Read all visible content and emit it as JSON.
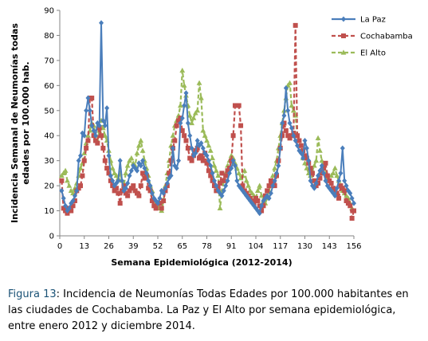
{
  "chart_data": {
    "type": "line",
    "ylabel": "Incidencia Semanal de Neumonías todas edades por 100.000 hab.",
    "xlabel": "Semana Epidemiológica (2012-2014)",
    "ylim": [
      0,
      90
    ],
    "yticks": [
      0,
      10,
      20,
      30,
      40,
      50,
      60,
      70,
      80,
      90
    ],
    "xlim": [
      0,
      156
    ],
    "xticks": [
      0,
      13,
      26,
      39,
      52,
      65,
      78,
      91,
      104,
      117,
      130,
      143,
      156
    ],
    "grid": false,
    "legend_position": "top-right",
    "series": [
      {
        "name": "La Paz",
        "color": "#4a7ebb",
        "style": "solid",
        "marker": "diamond",
        "values": [
          18,
          15,
          12,
          10,
          11,
          13,
          14,
          16,
          18,
          30,
          32,
          41,
          40,
          50,
          55,
          50,
          44,
          42,
          40,
          45,
          44,
          85,
          46,
          44,
          51,
          32,
          24,
          22,
          20,
          21,
          22,
          30,
          22,
          18,
          19,
          21,
          24,
          26,
          28,
          27,
          26,
          29,
          28,
          30,
          27,
          25,
          22,
          20,
          17,
          15,
          14,
          13,
          15,
          18,
          17,
          19,
          21,
          23,
          24,
          35,
          28,
          27,
          30,
          45,
          47,
          52,
          57,
          45,
          40,
          35,
          32,
          33,
          38,
          36,
          37,
          35,
          33,
          32,
          30,
          28,
          25,
          22,
          20,
          18,
          17,
          16,
          18,
          20,
          22,
          25,
          27,
          30,
          28,
          22,
          20,
          19,
          18,
          17,
          16,
          15,
          14,
          13,
          12,
          11,
          10,
          9,
          12,
          14,
          15,
          16,
          15,
          17,
          20,
          22,
          25,
          28,
          35,
          45,
          48,
          59,
          50,
          45,
          43,
          40,
          38,
          36,
          34,
          33,
          31,
          38,
          35,
          30,
          22,
          20,
          19,
          21,
          24,
          26,
          28,
          25,
          22,
          20,
          19,
          18,
          17,
          16,
          19,
          22,
          25,
          35,
          22,
          20,
          18,
          17,
          15,
          13
        ]
      },
      {
        "name": "Cochabamba",
        "color": "#c0504d",
        "style": "dashed",
        "marker": "square",
        "values": [
          22,
          11,
          10,
          9,
          11,
          10,
          12,
          14,
          18,
          19,
          20,
          24,
          30,
          35,
          38,
          55,
          55,
          40,
          38,
          37,
          43,
          40,
          35,
          30,
          27,
          25,
          22,
          20,
          18,
          19,
          17,
          13,
          18,
          20,
          17,
          16,
          18,
          19,
          20,
          18,
          17,
          16,
          20,
          25,
          23,
          24,
          19,
          18,
          14,
          12,
          11,
          13,
          13,
          11,
          14,
          18,
          20,
          25,
          30,
          35,
          38,
          44,
          46,
          47,
          42,
          40,
          38,
          35,
          31,
          30,
          32,
          34,
          35,
          31,
          32,
          30,
          33,
          29,
          26,
          24,
          22,
          20,
          18,
          19,
          21,
          25,
          22,
          24,
          26,
          27,
          30,
          40,
          52,
          52,
          52,
          44,
          20,
          18,
          17,
          16,
          15,
          14,
          13,
          15,
          14,
          12,
          10,
          12,
          16,
          18,
          20,
          22,
          21,
          20,
          24,
          30,
          35,
          40,
          45,
          42,
          40,
          39,
          40,
          41,
          84,
          40,
          38,
          36,
          34,
          32,
          31,
          29,
          27,
          25,
          22,
          20,
          21,
          23,
          25,
          27,
          29,
          24,
          22,
          21,
          19,
          18,
          17,
          15,
          20,
          19,
          18,
          14,
          13,
          12,
          7,
          10
        ]
      },
      {
        "name": "El Alto",
        "color": "#9bbb59",
        "style": "dashed",
        "marker": "triangle",
        "values": [
          24,
          25,
          26,
          22,
          20,
          18,
          17,
          19,
          21,
          24,
          27,
          29,
          33,
          37,
          40,
          42,
          45,
          44,
          40,
          38,
          42,
          46,
          43,
          40,
          38,
          34,
          30,
          27,
          25,
          24,
          23,
          25,
          22,
          20,
          25,
          28,
          30,
          31,
          29,
          28,
          33,
          36,
          38,
          34,
          30,
          27,
          24,
          20,
          18,
          15,
          13,
          12,
          11,
          10,
          14,
          20,
          25,
          30,
          36,
          40,
          44,
          46,
          48,
          52,
          66,
          60,
          56,
          52,
          48,
          45,
          47,
          49,
          50,
          61,
          55,
          42,
          40,
          38,
          36,
          34,
          31,
          28,
          26,
          24,
          11,
          18,
          22,
          25,
          28,
          30,
          32,
          31,
          29,
          27,
          25,
          23,
          24,
          26,
          22,
          20,
          18,
          17,
          16,
          15,
          18,
          20,
          16,
          14,
          13,
          15,
          18,
          21,
          24,
          27,
          30,
          35,
          40,
          45,
          50,
          55,
          60,
          61,
          52,
          50,
          48,
          40,
          38,
          34,
          31,
          29,
          27,
          25,
          24,
          26,
          28,
          30,
          39,
          34,
          30,
          27,
          25,
          23,
          22,
          24,
          25,
          27,
          24,
          22,
          20,
          18,
          17,
          16,
          15,
          13,
          11,
          10
        ]
      }
    ]
  },
  "caption": {
    "figure_label": "Figura 13",
    "text": ":  Incidencia de Neumonías Todas Edades por 100.000 habitantes en las ciudades de Cochabamba. La Paz y El Alto por semana epidemiológica, entre enero 2012 y diciembre 2014."
  }
}
